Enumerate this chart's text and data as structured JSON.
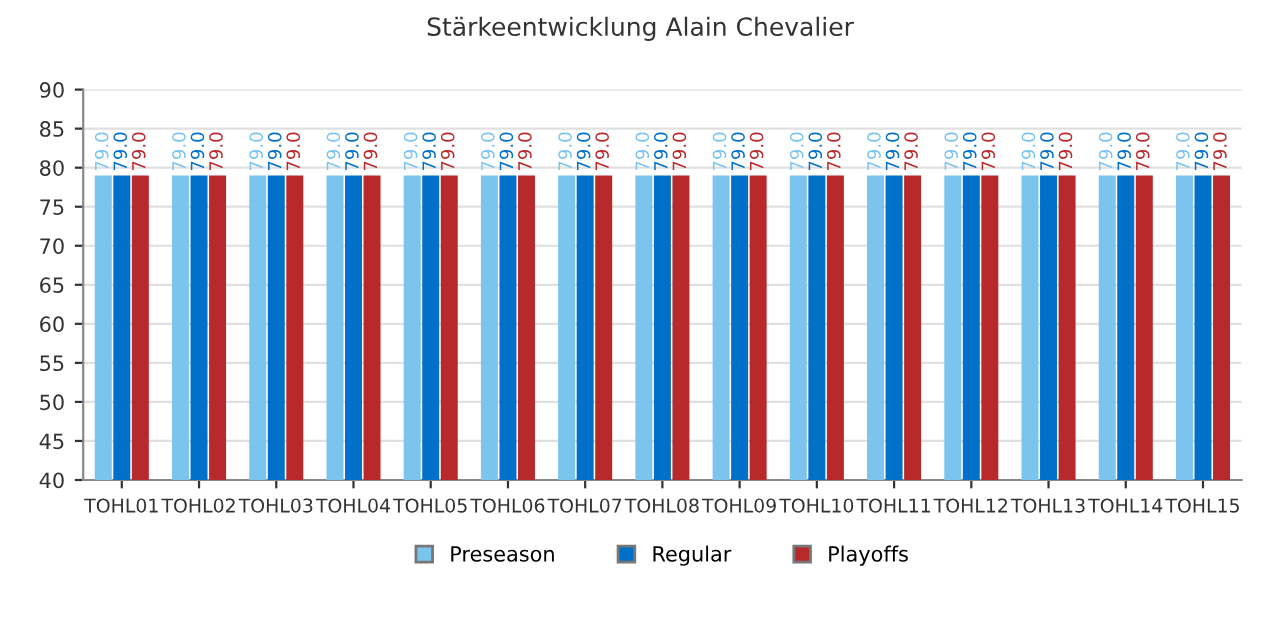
{
  "chart_data": {
    "type": "bar",
    "title": "Stärkeentwicklung Alain Chevalier",
    "categories": [
      "TOHL01",
      "TOHL02",
      "TOHL03",
      "TOHL04",
      "TOHL05",
      "TOHL06",
      "TOHL07",
      "TOHL08",
      "TOHL09",
      "TOHL10",
      "TOHL11",
      "TOHL12",
      "TOHL13",
      "TOHL14",
      "TOHL15"
    ],
    "series": [
      {
        "name": "Preseason",
        "color": "#7ac4ee",
        "values": [
          79,
          79,
          79,
          79,
          79,
          79,
          79,
          79,
          79,
          79,
          79,
          79,
          79,
          79,
          79
        ],
        "value_labels": [
          "79.0",
          "79.0",
          "79.0",
          "79.0",
          "79.0",
          "79.0",
          "79.0",
          "79.0",
          "79.0",
          "79.0",
          "79.0",
          "79.0",
          "79.0",
          "79.0",
          "79.0"
        ]
      },
      {
        "name": "Regular",
        "color": "#0070c8",
        "values": [
          79,
          79,
          79,
          79,
          79,
          79,
          79,
          79,
          79,
          79,
          79,
          79,
          79,
          79,
          79
        ],
        "value_labels": [
          "79.0",
          "79.0",
          "79.0",
          "79.0",
          "79.0",
          "79.0",
          "79.0",
          "79.0",
          "79.0",
          "79.0",
          "79.0",
          "79.0",
          "79.0",
          "79.0",
          "79.0"
        ]
      },
      {
        "name": "Playoffs",
        "color": "#b8292c",
        "values": [
          79,
          79,
          79,
          79,
          79,
          79,
          79,
          79,
          79,
          79,
          79,
          79,
          79,
          79,
          79
        ],
        "value_labels": [
          "79.0",
          "79.0",
          "79.0",
          "79.0",
          "79.0",
          "79.0",
          "79.0",
          "79.0",
          "79.0",
          "79.0",
          "79.0",
          "79.0",
          "79.0",
          "79.0",
          "79.0"
        ]
      }
    ],
    "ylim": [
      40,
      90
    ],
    "yticks": [
      40,
      45,
      50,
      55,
      60,
      65,
      70,
      75,
      80,
      85,
      90
    ],
    "grid": "y",
    "legend": "bottom"
  }
}
